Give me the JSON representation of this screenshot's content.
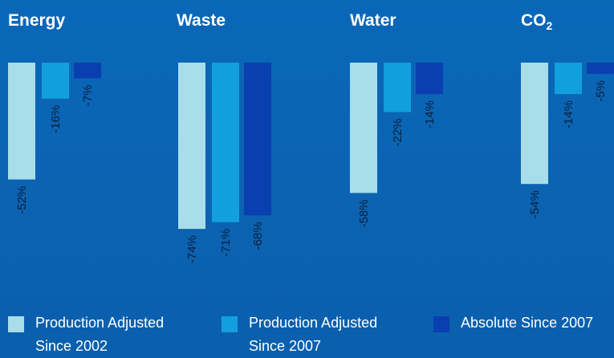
{
  "chart_data": {
    "type": "bar",
    "panels": [
      {
        "title": "Energy",
        "values": [
          -52,
          -16,
          -7
        ],
        "labels": [
          "-52%",
          "-16%",
          "-7%"
        ]
      },
      {
        "title": "Waste",
        "values": [
          -74,
          -71,
          -68
        ],
        "labels": [
          "-74%",
          "-71%",
          "-68%"
        ]
      },
      {
        "title": "Water",
        "values": [
          -58,
          -22,
          -14
        ],
        "labels": [
          "-58%",
          "-22%",
          "-14%"
        ]
      },
      {
        "title_main": "CO",
        "title_sub": "2",
        "values": [
          -54,
          -14,
          -5
        ],
        "labels": [
          "-54%",
          "-14%",
          "-5%"
        ]
      }
    ],
    "series": [
      {
        "name": "Production Adjusted Since 2002",
        "color": "#a8dde9"
      },
      {
        "name": "Production Adjusted Since 2007",
        "color": "#129fe0"
      },
      {
        "name": "Absolute Since 2007",
        "color": "#0a3fb0"
      }
    ],
    "legend": [
      {
        "line1": "Production Adjusted",
        "line2": "Since 2002"
      },
      {
        "line1": "Production Adjusted",
        "line2": "Since 2007"
      },
      {
        "line1": "Absolute Since 2007",
        "line2": ""
      }
    ],
    "ylim": [
      -100,
      0
    ],
    "legend_position": "bottom"
  }
}
